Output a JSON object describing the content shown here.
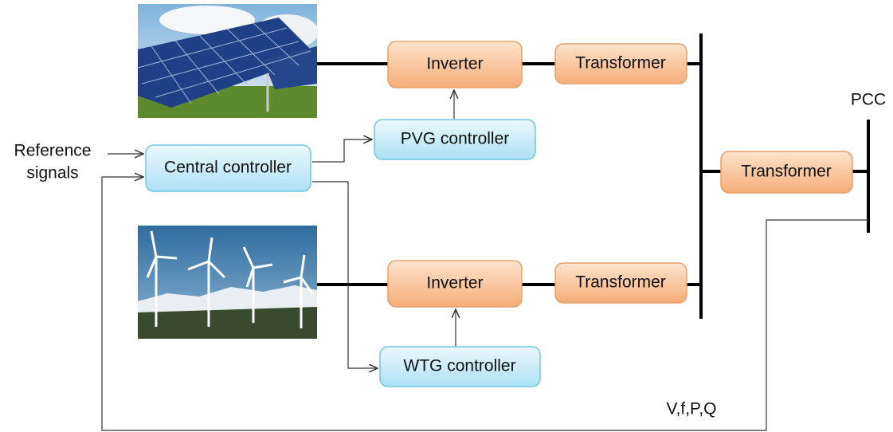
{
  "blocks": {
    "inverter_pv": "Inverter",
    "transformer_pv": "Transformer",
    "pvg_controller": "PVG controller",
    "central_controller": "Central controller",
    "transformer_main": "Transformer",
    "inverter_wt": "Inverter",
    "transformer_wt": "Transformer",
    "wtg_controller": "WTG controller"
  },
  "labels": {
    "reference_signals": [
      "Reference",
      "signals"
    ],
    "pcc": "PCC",
    "feedback": "V,f,P,Q"
  }
}
